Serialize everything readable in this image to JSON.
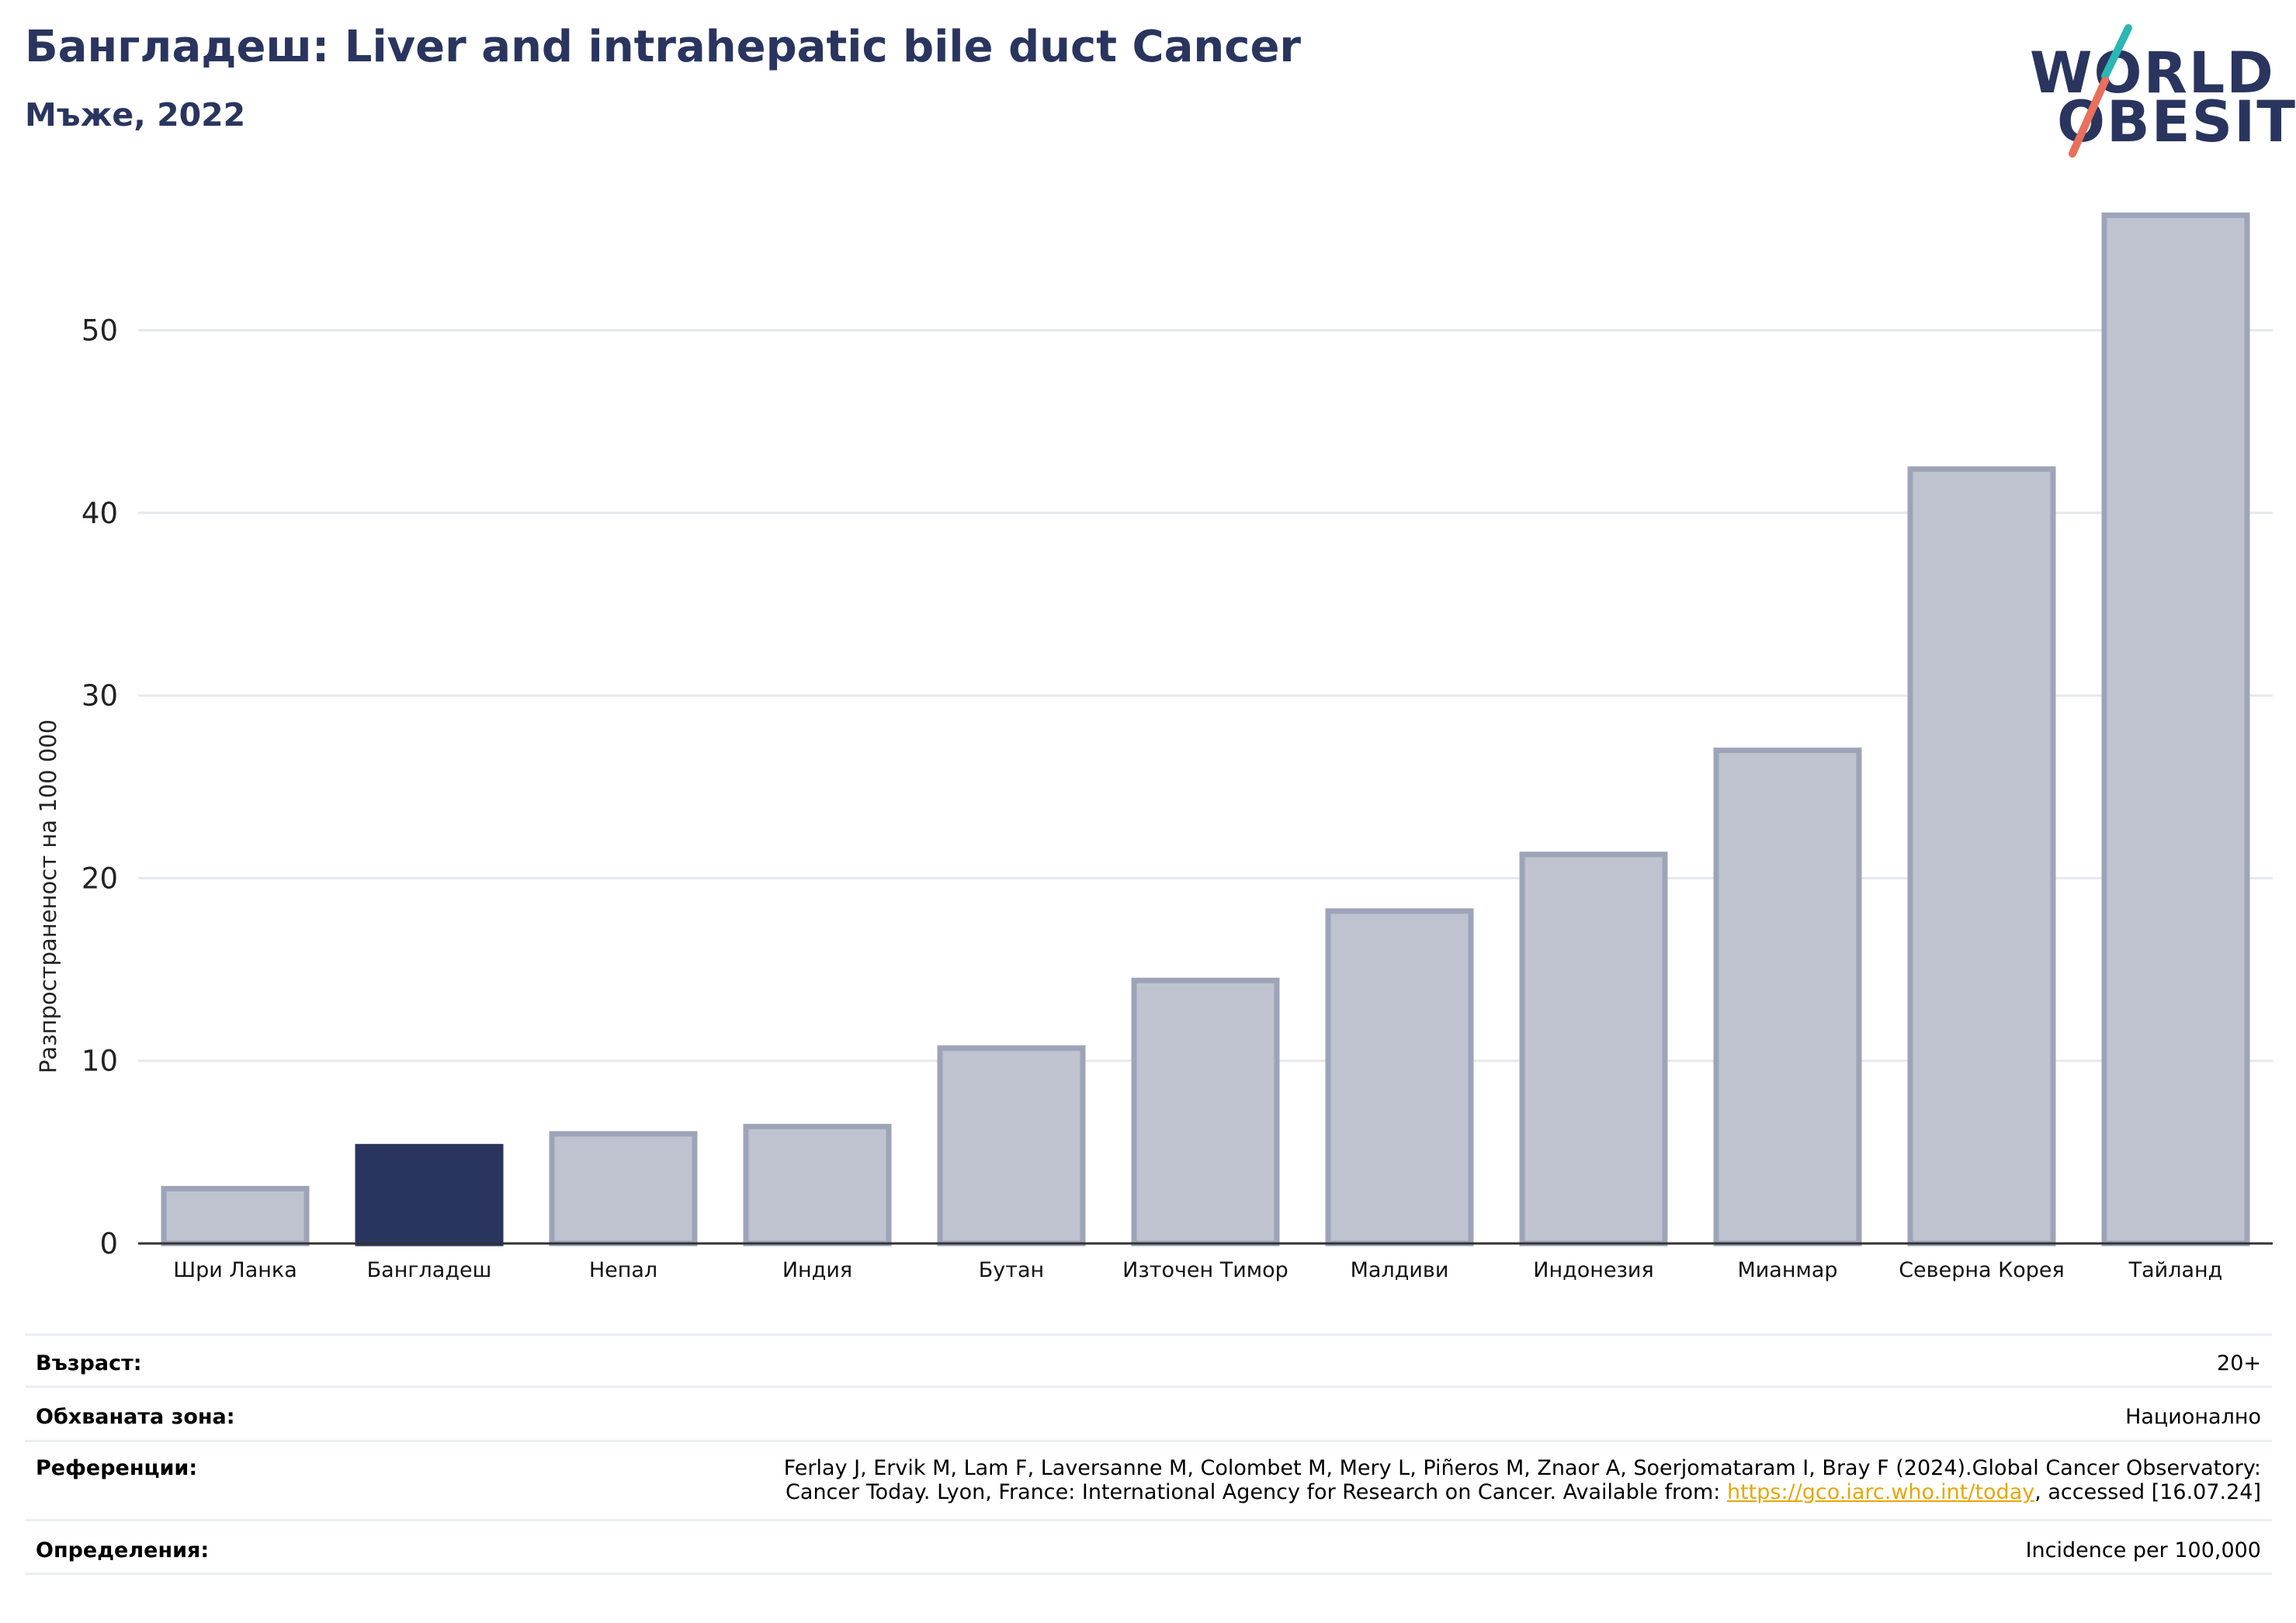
{
  "header": {
    "title": "Бангладеш: Liver and intrahepatic bile duct Cancer",
    "subtitle": "Мъже, 2022"
  },
  "logo": {
    "line1": "WORLD",
    "line2": "OBESITY",
    "colors": {
      "text": "#2a355f",
      "slash_top": "#2bb7b3",
      "slash_bottom": "#e8705c"
    }
  },
  "chart_data": {
    "type": "bar",
    "categories": [
      "Шри Ланка",
      "Бангладеш",
      "Непал",
      "Индия",
      "Бутан",
      "Източен Тимор",
      "Малдиви",
      "Индонезия",
      "Мианмар",
      "Северна Корея",
      "Тайланд"
    ],
    "values": [
      3.0,
      5.3,
      6.0,
      6.4,
      10.7,
      14.4,
      18.2,
      21.3,
      27.0,
      42.4,
      56.3
    ],
    "highlight": "Бангладеш",
    "ylabel": "Разпространеност  на 100 000",
    "xlabel": "",
    "ylim": [
      0,
      59
    ],
    "yticks": [
      0,
      10,
      20,
      30,
      40,
      50
    ],
    "grid": true,
    "colors": {
      "bar": "#bfc3cf",
      "bar_edge": "#9ea4b8",
      "highlight": "#2a355f",
      "grid": "#e6e8ef",
      "axis": "#333333"
    }
  },
  "footer": {
    "age_label": "Възраст:",
    "age_value": "20+",
    "coverage_label": "Обхваната зона:",
    "coverage_value": "Национално",
    "references_label": "Референции:",
    "references_line1": "Ferlay J, Ervik M, Lam F, Laversanne M, Colombet M, Mery L, Piñeros M, Znaor A, Soerjomataram I, Bray F (2024).Global Cancer Observatory:",
    "references_line2_pre": "Cancer Today. Lyon, France: International Agency for Research on Cancer. Available from: ",
    "references_link": "https://gco.iarc.who.int/today",
    "references_line2_post": ", accessed [16.07.24]",
    "definitions_label": "Определения:",
    "definitions_value": "Incidence per 100,000"
  }
}
